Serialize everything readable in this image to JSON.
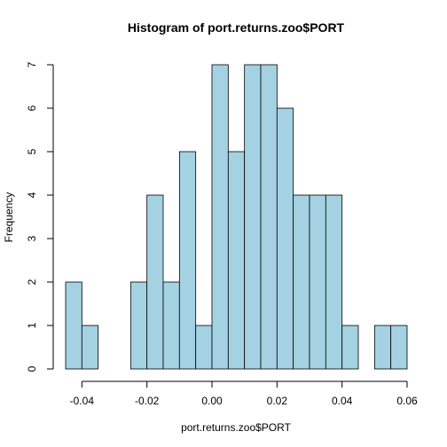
{
  "chart_data": {
    "type": "bar",
    "title": "Histogram of port.returns.zoo$PORT",
    "xlabel": "port.returns.zoo$PORT",
    "ylabel": "Frequency",
    "bins": [
      {
        "start": -0.045,
        "end": -0.04,
        "count": 2
      },
      {
        "start": -0.04,
        "end": -0.035,
        "count": 1
      },
      {
        "start": -0.035,
        "end": -0.03,
        "count": 0
      },
      {
        "start": -0.03,
        "end": -0.025,
        "count": 0
      },
      {
        "start": -0.025,
        "end": -0.02,
        "count": 2
      },
      {
        "start": -0.02,
        "end": -0.015,
        "count": 4
      },
      {
        "start": -0.015,
        "end": -0.01,
        "count": 2
      },
      {
        "start": -0.01,
        "end": -0.005,
        "count": 5
      },
      {
        "start": -0.005,
        "end": 0.0,
        "count": 1
      },
      {
        "start": 0.0,
        "end": 0.005,
        "count": 7
      },
      {
        "start": 0.005,
        "end": 0.01,
        "count": 5
      },
      {
        "start": 0.01,
        "end": 0.015,
        "count": 7
      },
      {
        "start": 0.015,
        "end": 0.02,
        "count": 7
      },
      {
        "start": 0.02,
        "end": 0.025,
        "count": 6
      },
      {
        "start": 0.025,
        "end": 0.03,
        "count": 4
      },
      {
        "start": 0.03,
        "end": 0.035,
        "count": 4
      },
      {
        "start": 0.035,
        "end": 0.04,
        "count": 4
      },
      {
        "start": 0.04,
        "end": 0.045,
        "count": 1
      },
      {
        "start": 0.045,
        "end": 0.05,
        "count": 0
      },
      {
        "start": 0.05,
        "end": 0.055,
        "count": 1
      },
      {
        "start": 0.055,
        "end": 0.06,
        "count": 1
      }
    ],
    "xlim": [
      -0.045,
      0.06
    ],
    "ylim": [
      0,
      7
    ],
    "x_ticks": [
      {
        "value": -0.04,
        "label": "-0.04"
      },
      {
        "value": -0.02,
        "label": "-0.02"
      },
      {
        "value": 0.0,
        "label": "0.00"
      },
      {
        "value": 0.02,
        "label": "0.02"
      },
      {
        "value": 0.04,
        "label": "0.04"
      },
      {
        "value": 0.06,
        "label": "0.06"
      }
    ],
    "y_ticks": [
      {
        "value": 0,
        "label": "0"
      },
      {
        "value": 1,
        "label": "1"
      },
      {
        "value": 2,
        "label": "2"
      },
      {
        "value": 3,
        "label": "3"
      },
      {
        "value": 4,
        "label": "4"
      },
      {
        "value": 5,
        "label": "5"
      },
      {
        "value": 6,
        "label": "6"
      },
      {
        "value": 7,
        "label": "7"
      }
    ],
    "bar_color": "#a4d2e2",
    "grid": false,
    "legend": "none"
  }
}
